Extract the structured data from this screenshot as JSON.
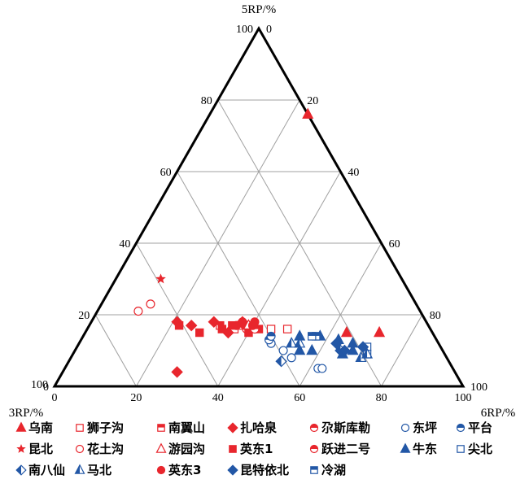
{
  "chart_data": {
    "type": "scatter",
    "subtype": "ternary",
    "axes": {
      "top": {
        "label": "5RP/%",
        "ticks": [
          0,
          20,
          40,
          60,
          80,
          100
        ]
      },
      "left": {
        "label": "3RP/%",
        "ticks": [
          100,
          80,
          60,
          40,
          20,
          0
        ]
      },
      "right": {
        "label": "6RP/%",
        "ticks": [
          100,
          80,
          60,
          40,
          20,
          0
        ]
      },
      "bottom_ticks": [
        0,
        20,
        40,
        60,
        80,
        100
      ]
    },
    "grid": true,
    "grid_step": 20,
    "legend_position": "bottom",
    "colors": {
      "red": "#e8262d",
      "blue": "#2257a6",
      "grid": "#a0a0a0"
    },
    "series": [
      {
        "name": "乌南",
        "marker": "triangle-filled",
        "color": "#e8262d",
        "points": [
          [
            76,
            0,
            24
          ],
          [
            15,
            21,
            64
          ],
          [
            15,
            13,
            72
          ]
        ]
      },
      {
        "name": "狮子沟",
        "marker": "square-open",
        "color": "#e8262d",
        "points": [
          [
            16,
            35,
            49
          ],
          [
            17,
            46,
            37
          ],
          [
            16,
            39,
            45
          ]
        ]
      },
      {
        "name": "南翼山",
        "marker": "square-half",
        "color": "#e8262d",
        "points": [
          [
            17,
            51,
            32
          ],
          [
            16,
            48,
            36
          ]
        ]
      },
      {
        "name": "扎哈泉",
        "marker": "diamond-filled",
        "color": "#e8262d",
        "points": [
          [
            18,
            61,
            21
          ],
          [
            17,
            58,
            25
          ],
          [
            18,
            52,
            30
          ],
          [
            18,
            45,
            37
          ],
          [
            17,
            45,
            38
          ],
          [
            15,
            50,
            35
          ],
          [
            4,
            68,
            28
          ]
        ]
      },
      {
        "name": "尕斯库勒",
        "marker": "circle-half",
        "color": "#e8262d",
        "points": [
          [
            17,
            44,
            39
          ],
          [
            16,
            45,
            39
          ]
        ]
      },
      {
        "name": "东坪",
        "marker": "circle-open",
        "color": "#2257a6",
        "points": [
          [
            12,
            41,
            47
          ],
          [
            8,
            38,
            54
          ],
          [
            10,
            39,
            51
          ],
          [
            5,
            33,
            62
          ],
          [
            5,
            32,
            63
          ]
        ]
      },
      {
        "name": "平台",
        "marker": "circle-half",
        "color": "#2257a6",
        "points": [
          [
            13,
            41,
            46
          ],
          [
            14,
            40,
            46
          ]
        ]
      },
      {
        "name": "昆北",
        "marker": "star",
        "color": "#e8262d",
        "points": [
          [
            30,
            59,
            11
          ]
        ]
      },
      {
        "name": "花土沟",
        "marker": "circle-open",
        "color": "#e8262d",
        "points": [
          [
            21,
            69,
            10
          ],
          [
            23,
            65,
            12
          ]
        ]
      },
      {
        "name": "游园沟",
        "marker": "triangle-open",
        "color": "#e8262d",
        "points": [
          [
            17,
            44,
            39
          ]
        ]
      },
      {
        "name": "英东1",
        "marker": "square-filled",
        "color": "#e8262d",
        "points": [
          [
            17,
            61,
            22
          ],
          [
            15,
            57,
            28
          ],
          [
            16,
            51,
            33
          ],
          [
            17,
            48,
            35
          ],
          [
            15,
            45,
            40
          ],
          [
            16,
            42,
            42
          ]
        ]
      },
      {
        "name": "跃进二号",
        "marker": "circle-half",
        "color": "#e8262d",
        "points": [
          [
            16,
            43,
            41
          ]
        ]
      },
      {
        "name": "牛东",
        "marker": "triangle-filled",
        "color": "#2257a6",
        "points": [
          [
            14,
            33,
            53
          ],
          [
            14,
            28,
            58
          ],
          [
            13,
            24,
            63
          ],
          [
            12,
            21,
            67
          ],
          [
            10,
            32,
            58
          ],
          [
            9,
            25,
            66
          ],
          [
            10,
            22,
            68
          ],
          [
            10,
            35,
            55
          ]
        ]
      },
      {
        "name": "尖北",
        "marker": "square-open",
        "color": "#2257a6",
        "points": [
          [
            11,
            18,
            71
          ],
          [
            9,
            19,
            72
          ]
        ]
      },
      {
        "name": "南八仙",
        "marker": "diamond-half",
        "color": "#2257a6",
        "points": [
          [
            7,
            41,
            52
          ],
          [
            10,
            25,
            65
          ]
        ]
      },
      {
        "name": "马北",
        "marker": "triangle-half",
        "color": "#2257a6",
        "points": [
          [
            12,
            36,
            52
          ],
          [
            12,
            34,
            54
          ],
          [
            8,
            21,
            71
          ],
          [
            9,
            19,
            72
          ]
        ]
      },
      {
        "name": "英东3",
        "marker": "circle-filled",
        "color": "#e8262d",
        "points": [
          [
            17,
            47,
            36
          ],
          [
            18,
            45,
            37
          ],
          [
            17,
            43,
            40
          ],
          [
            18,
            42,
            40
          ]
        ]
      },
      {
        "name": "昆特依北",
        "marker": "diamond-filled",
        "color": "#2257a6",
        "points": [
          [
            12,
            25,
            63
          ],
          [
            10,
            24,
            66
          ],
          [
            11,
            19,
            70
          ]
        ]
      },
      {
        "name": "冷湖",
        "marker": "square-half",
        "color": "#2257a6",
        "points": [
          [
            14,
            29,
            57
          ],
          [
            14,
            30,
            56
          ]
        ]
      }
    ]
  }
}
